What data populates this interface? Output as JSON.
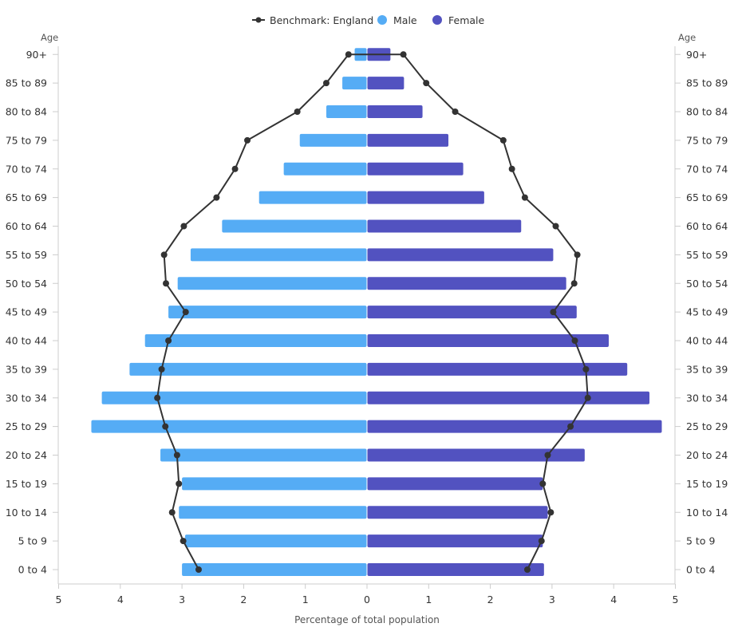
{
  "chart_data": {
    "type": "bar",
    "orientation": "horizontal-population-pyramid",
    "categories": [
      "0 to 4",
      "5 to 9",
      "10 to 14",
      "15 to 19",
      "20 to 24",
      "25 to 29",
      "30 to 34",
      "35 to 39",
      "40 to 44",
      "45 to 49",
      "50 to 54",
      "55 to 59",
      "60 to 64",
      "65 to 69",
      "70 to 74",
      "75 to 79",
      "80 to 84",
      "85 to 89",
      "90+"
    ],
    "series": [
      {
        "name": "Male",
        "side": "left",
        "color": "#55acf5",
        "values": [
          3.0,
          2.95,
          3.05,
          3.0,
          3.35,
          4.47,
          4.3,
          3.85,
          3.6,
          3.22,
          3.07,
          2.86,
          2.35,
          1.75,
          1.35,
          1.09,
          0.66,
          0.4,
          0.2
        ]
      },
      {
        "name": "Female",
        "side": "right",
        "color": "#5252c0",
        "values": [
          2.87,
          2.85,
          2.93,
          2.85,
          3.53,
          4.78,
          4.58,
          4.22,
          3.92,
          3.4,
          3.23,
          3.02,
          2.5,
          1.9,
          1.56,
          1.32,
          0.9,
          0.6,
          0.38
        ]
      },
      {
        "name": "Benchmark: England",
        "color": "#333333",
        "male_values": [
          2.73,
          2.98,
          3.16,
          3.05,
          3.08,
          3.27,
          3.4,
          3.33,
          3.22,
          2.94,
          3.26,
          3.29,
          2.97,
          2.44,
          2.14,
          1.94,
          1.13,
          0.66,
          0.3
        ],
        "female_values": [
          2.6,
          2.83,
          2.98,
          2.85,
          2.93,
          3.3,
          3.58,
          3.55,
          3.37,
          3.02,
          3.36,
          3.41,
          3.06,
          2.56,
          2.35,
          2.21,
          1.43,
          0.96,
          0.59
        ]
      }
    ],
    "legend": {
      "position": "top-center",
      "entries": [
        "Benchmark: England",
        "Male",
        "Female"
      ]
    },
    "xlabel": "Percentage of total population",
    "ylabel": "Age",
    "xlim": [
      0,
      5
    ],
    "xticks": [
      5,
      4,
      3,
      2,
      1,
      0,
      1,
      2,
      3,
      4,
      5
    ],
    "grid": false
  }
}
